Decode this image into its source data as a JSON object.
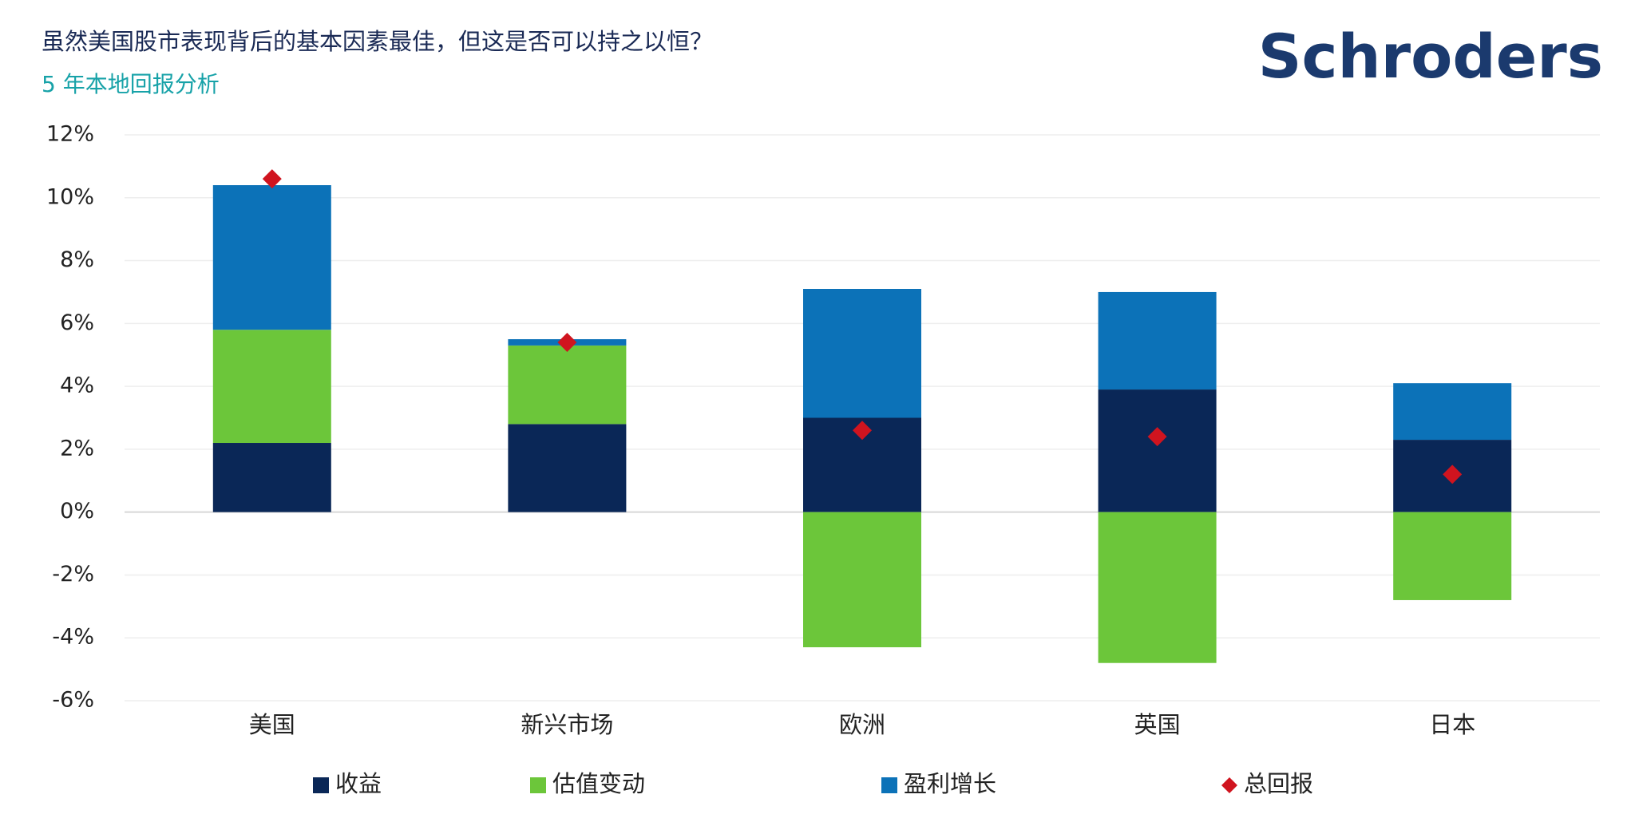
{
  "chart_data": {
    "type": "bar",
    "stacked": true,
    "title": "虽然美国股市表现背后的基本因素最佳，但这是否可以持之以恒？",
    "subtitle": "5 年本地回报分析",
    "logo": "Schroders",
    "categories": [
      "美国",
      "新兴市场",
      "欧洲",
      "英国",
      "日本"
    ],
    "series": [
      {
        "name": "收益",
        "color": "#0a2757",
        "values": [
          2.2,
          2.8,
          3.0,
          3.9,
          2.3
        ]
      },
      {
        "name": "估值变动",
        "color": "#6cc63a",
        "values": [
          3.6,
          2.5,
          -4.3,
          -4.8,
          -2.8
        ]
      },
      {
        "name": "盈利增长",
        "color": "#0c72b8",
        "values": [
          4.6,
          0.2,
          4.1,
          3.1,
          1.8
        ]
      },
      {
        "name": "总回报",
        "color": "#d0141f",
        "type": "scatter",
        "values": [
          10.6,
          5.4,
          2.6,
          2.4,
          1.2
        ]
      }
    ],
    "ylim": [
      -6,
      12
    ],
    "yticks": [
      {
        "value": -6,
        "label": "-6%"
      },
      {
        "value": -4,
        "label": "-4%"
      },
      {
        "value": -2,
        "label": "-2%"
      },
      {
        "value": 0,
        "label": "0%"
      },
      {
        "value": 2,
        "label": "2%"
      },
      {
        "value": 4,
        "label": "4%"
      },
      {
        "value": 6,
        "label": "6%"
      },
      {
        "value": 8,
        "label": "8%"
      },
      {
        "value": 10,
        "label": "10%"
      },
      {
        "value": 12,
        "label": "12%"
      }
    ],
    "grid": true
  }
}
